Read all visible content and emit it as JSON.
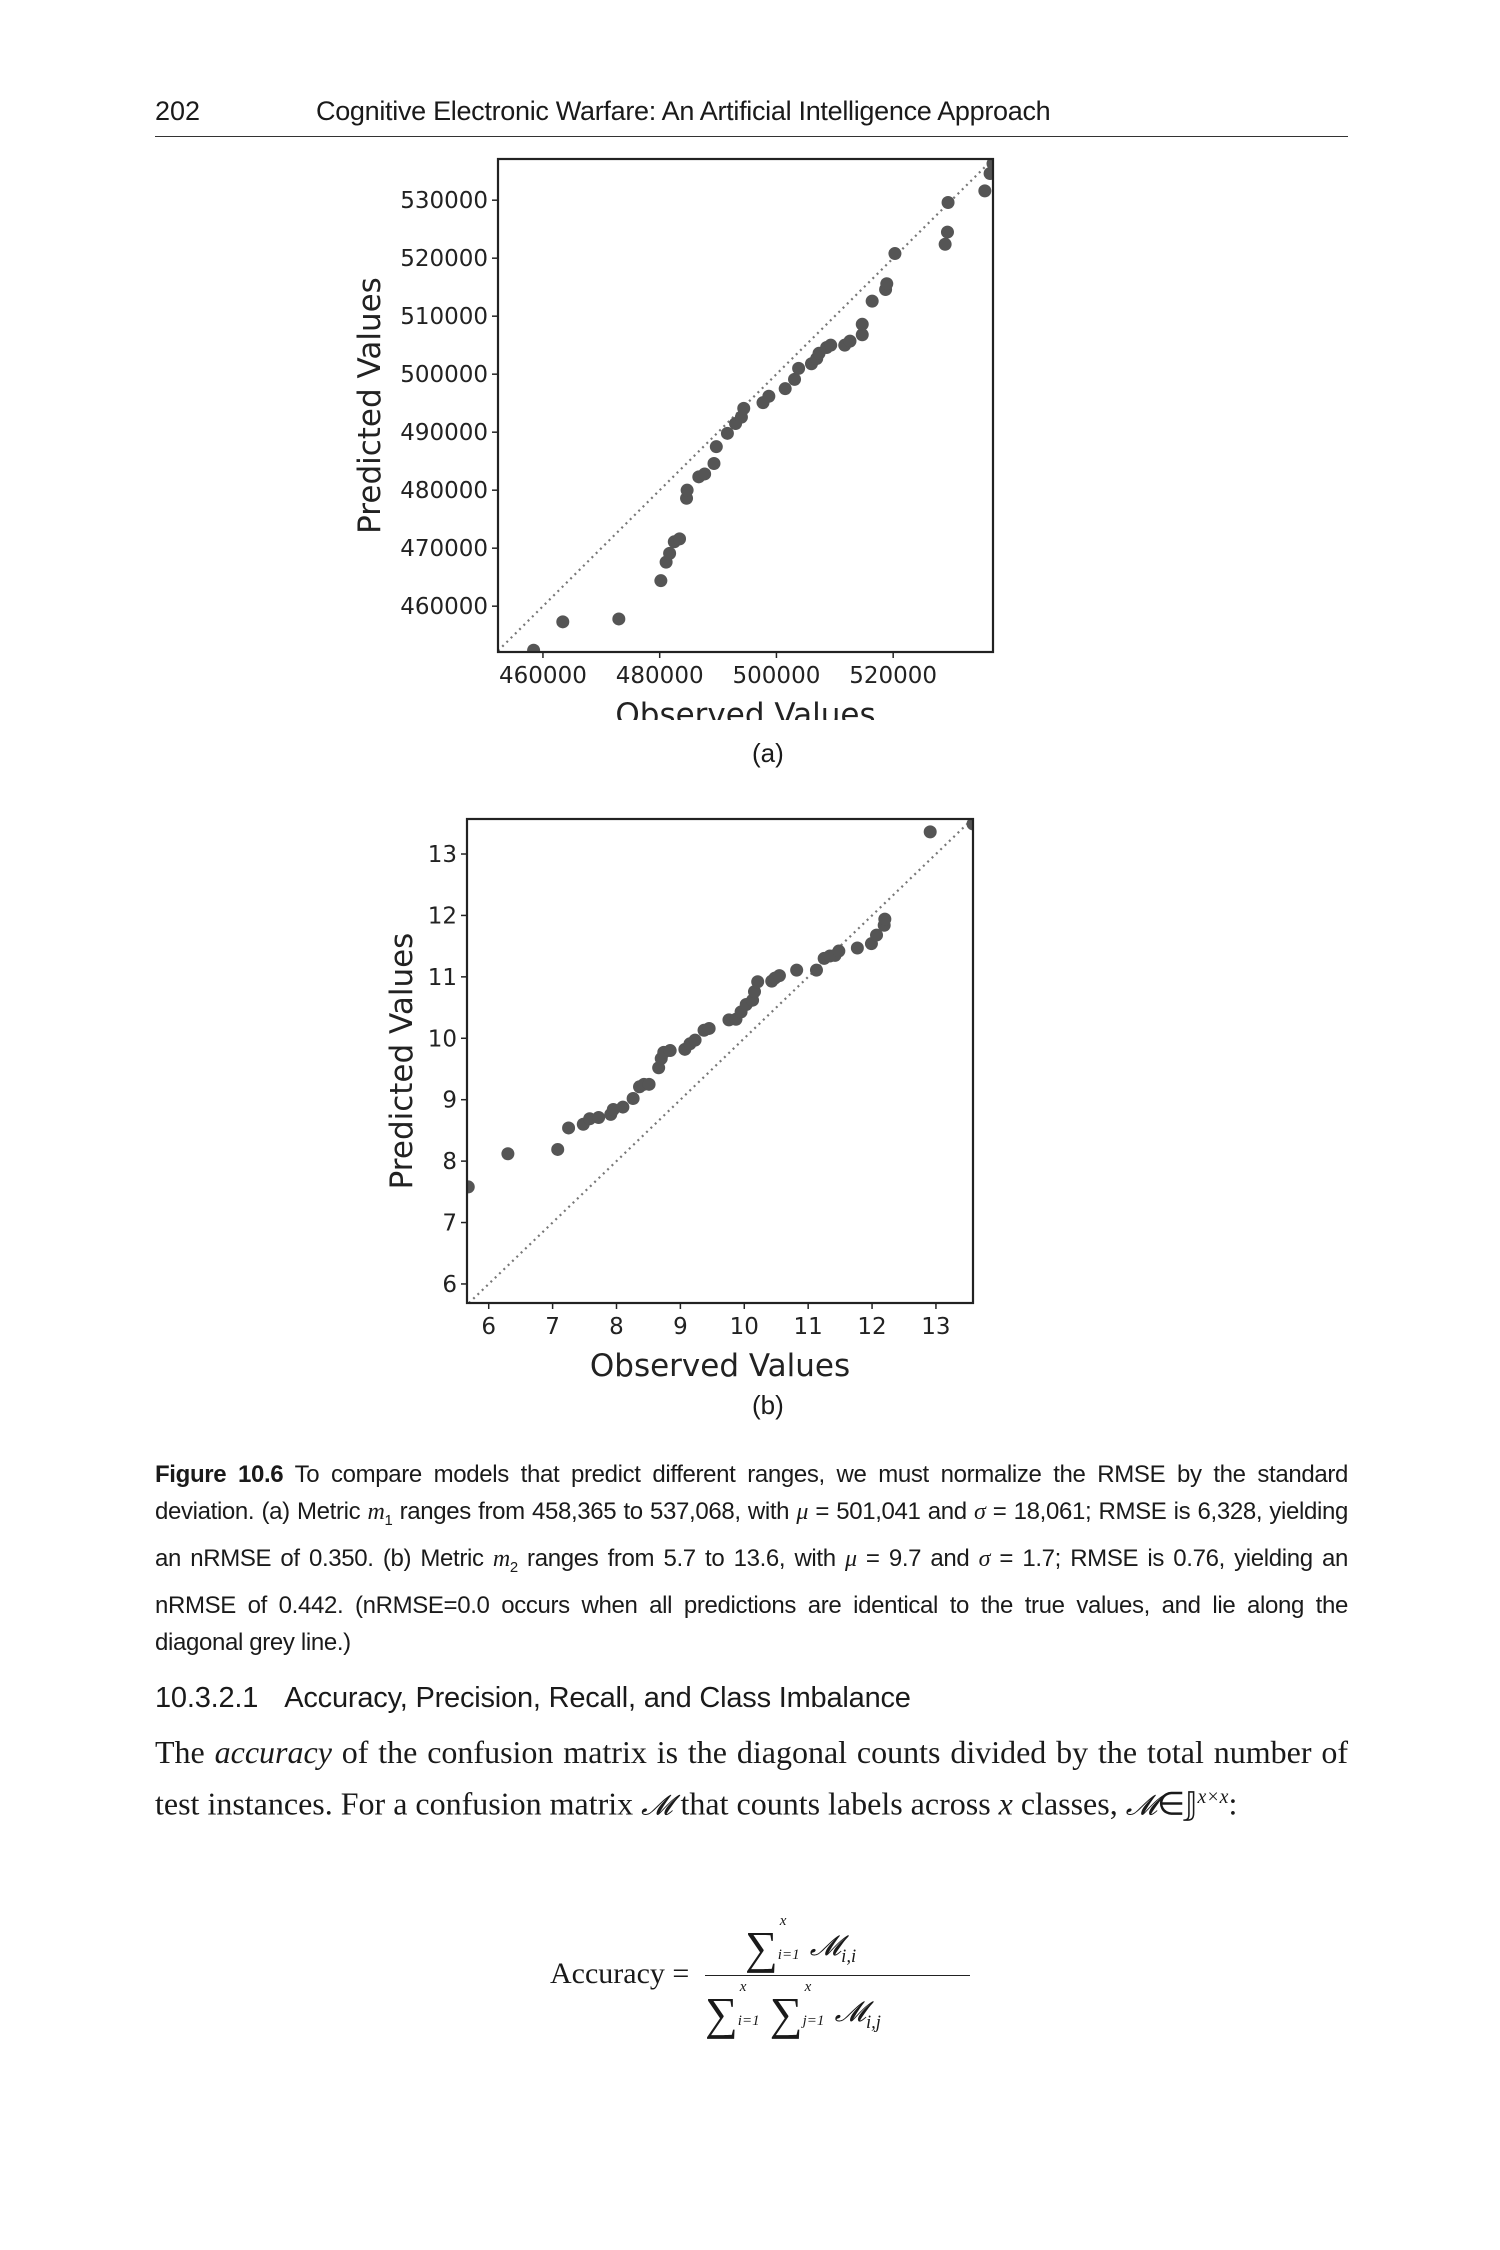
{
  "header": {
    "page_number": "202",
    "book_title": "Cognitive Electronic Warfare: An Artificial Intelligence Approach"
  },
  "chart_data": [
    {
      "type": "scatter",
      "panel_label": "(a)",
      "xlabel": "Observed Values",
      "ylabel": "Predicted Values",
      "xlim": [
        452300,
        537100
      ],
      "ylim": [
        452100,
        537100
      ],
      "xticks": [
        "460000",
        "480000",
        "500000",
        "520000"
      ],
      "yticks": [
        "460000",
        "470000",
        "480000",
        "490000",
        "500000",
        "510000",
        "520000",
        "530000"
      ],
      "reference_line": "y = x (dotted grey diagonal)",
      "point_color": "#555555",
      "points": [
        [
          458400,
          452400
        ],
        [
          463400,
          457300
        ],
        [
          473000,
          457800
        ],
        [
          480200,
          464400
        ],
        [
          481100,
          467600
        ],
        [
          481700,
          469100
        ],
        [
          482500,
          471100
        ],
        [
          483400,
          471600
        ],
        [
          484600,
          478600
        ],
        [
          484700,
          480000
        ],
        [
          486700,
          482300
        ],
        [
          487700,
          482800
        ],
        [
          489300,
          484600
        ],
        [
          489700,
          487500
        ],
        [
          491600,
          489800
        ],
        [
          493000,
          491500
        ],
        [
          494000,
          492600
        ],
        [
          494400,
          494100
        ],
        [
          497700,
          495100
        ],
        [
          498700,
          496200
        ],
        [
          501500,
          497500
        ],
        [
          503100,
          499100
        ],
        [
          503800,
          501000
        ],
        [
          506000,
          501800
        ],
        [
          506900,
          502700
        ],
        [
          507300,
          503600
        ],
        [
          508600,
          504600
        ],
        [
          509300,
          505000
        ],
        [
          511700,
          505000
        ],
        [
          512600,
          505700
        ],
        [
          514700,
          506800
        ],
        [
          514700,
          508600
        ],
        [
          516400,
          512600
        ],
        [
          518700,
          514600
        ],
        [
          518900,
          515600
        ],
        [
          520300,
          520800
        ],
        [
          528900,
          522400
        ],
        [
          529300,
          524500
        ],
        [
          529400,
          529600
        ],
        [
          535700,
          531600
        ],
        [
          536600,
          534600
        ],
        [
          537100,
          536300
        ]
      ]
    },
    {
      "type": "scatter",
      "panel_label": "(b)",
      "xlabel": "Observed Values",
      "ylabel": "Predicted Values",
      "xlim": [
        5.66,
        13.58
      ],
      "ylim": [
        5.69,
        13.57
      ],
      "xticks": [
        "6",
        "7",
        "8",
        "9",
        "10",
        "11",
        "12",
        "13"
      ],
      "yticks": [
        "6",
        "7",
        "8",
        "9",
        "10",
        "11",
        "12",
        "13"
      ],
      "reference_line": "y = x (dotted grey diagonal)",
      "point_color": "#555555",
      "points": [
        [
          5.68,
          7.58
        ],
        [
          6.3,
          8.12
        ],
        [
          7.08,
          8.19
        ],
        [
          7.25,
          8.54
        ],
        [
          7.48,
          8.6
        ],
        [
          7.58,
          8.69
        ],
        [
          7.72,
          8.71
        ],
        [
          7.91,
          8.76
        ],
        [
          7.95,
          8.84
        ],
        [
          8.1,
          8.88
        ],
        [
          8.26,
          9.02
        ],
        [
          8.36,
          9.21
        ],
        [
          8.43,
          9.25
        ],
        [
          8.51,
          9.25
        ],
        [
          8.66,
          9.52
        ],
        [
          8.7,
          9.67
        ],
        [
          8.74,
          9.77
        ],
        [
          8.84,
          9.8
        ],
        [
          9.07,
          9.82
        ],
        [
          9.15,
          9.91
        ],
        [
          9.23,
          9.97
        ],
        [
          9.37,
          10.13
        ],
        [
          9.45,
          10.16
        ],
        [
          9.76,
          10.3
        ],
        [
          9.87,
          10.31
        ],
        [
          9.95,
          10.43
        ],
        [
          10.03,
          10.55
        ],
        [
          10.13,
          10.62
        ],
        [
          10.16,
          10.76
        ],
        [
          10.21,
          10.92
        ],
        [
          10.43,
          10.93
        ],
        [
          10.48,
          10.98
        ],
        [
          10.55,
          11.02
        ],
        [
          10.82,
          11.11
        ],
        [
          11.13,
          11.11
        ],
        [
          11.25,
          11.3
        ],
        [
          11.34,
          11.34
        ],
        [
          11.42,
          11.35
        ],
        [
          11.48,
          11.42
        ],
        [
          11.77,
          11.47
        ],
        [
          11.99,
          11.54
        ],
        [
          12.07,
          11.68
        ],
        [
          12.19,
          11.84
        ],
        [
          12.2,
          11.94
        ],
        [
          12.91,
          13.36
        ],
        [
          13.58,
          13.49
        ]
      ]
    }
  ],
  "caption": {
    "label": "Figure 10.6",
    "t1": " To compare models that predict different ranges, we must normalize the RMSE by the standard deviation. (a) Metric ",
    "m": "m",
    "sub1": "1",
    "t2": " ranges from 458,365 to 537,068, with ",
    "mu": "μ",
    "t3": " = 501,041 and ",
    "sigma": "σ",
    "t4": " = 18,061; RMSE is 6,328, yielding an nRMSE of 0.350. (b) Metric ",
    "sub2": "2",
    "t5": " ranges from 5.7 to 13.6, with ",
    "t6": " = 9.7 and ",
    "t7": " = 1.7; RMSE is 0.76, yielding an nRMSE of 0.442. (nRMSE=0.0 occurs when all predictions are identical to the true values, and lie along the diagonal grey line.)"
  },
  "section": {
    "number": "10.3.2.1",
    "title": "Accuracy, Precision, Recall, and Class Imbalance"
  },
  "body": {
    "t1": "The ",
    "em": "accuracy",
    "t2": " of the confusion matrix is the diagonal counts divided by the total number of test instances. For a confusion matrix ",
    "M": "𝓜",
    "t3": " that counts labels across ",
    "x": "x",
    "t4": " classes, ",
    "in": "∈",
    "J": "𝕁",
    "sup": "x×x",
    "t5": ":"
  },
  "equation": {
    "lhs": "Accuracy =",
    "sigma": "∑",
    "upper": "x",
    "lower_i": "i=1",
    "lower_j": "j=1",
    "M": "𝓜",
    "sub_ii": "i,i",
    "sub_ij": "i,j"
  }
}
